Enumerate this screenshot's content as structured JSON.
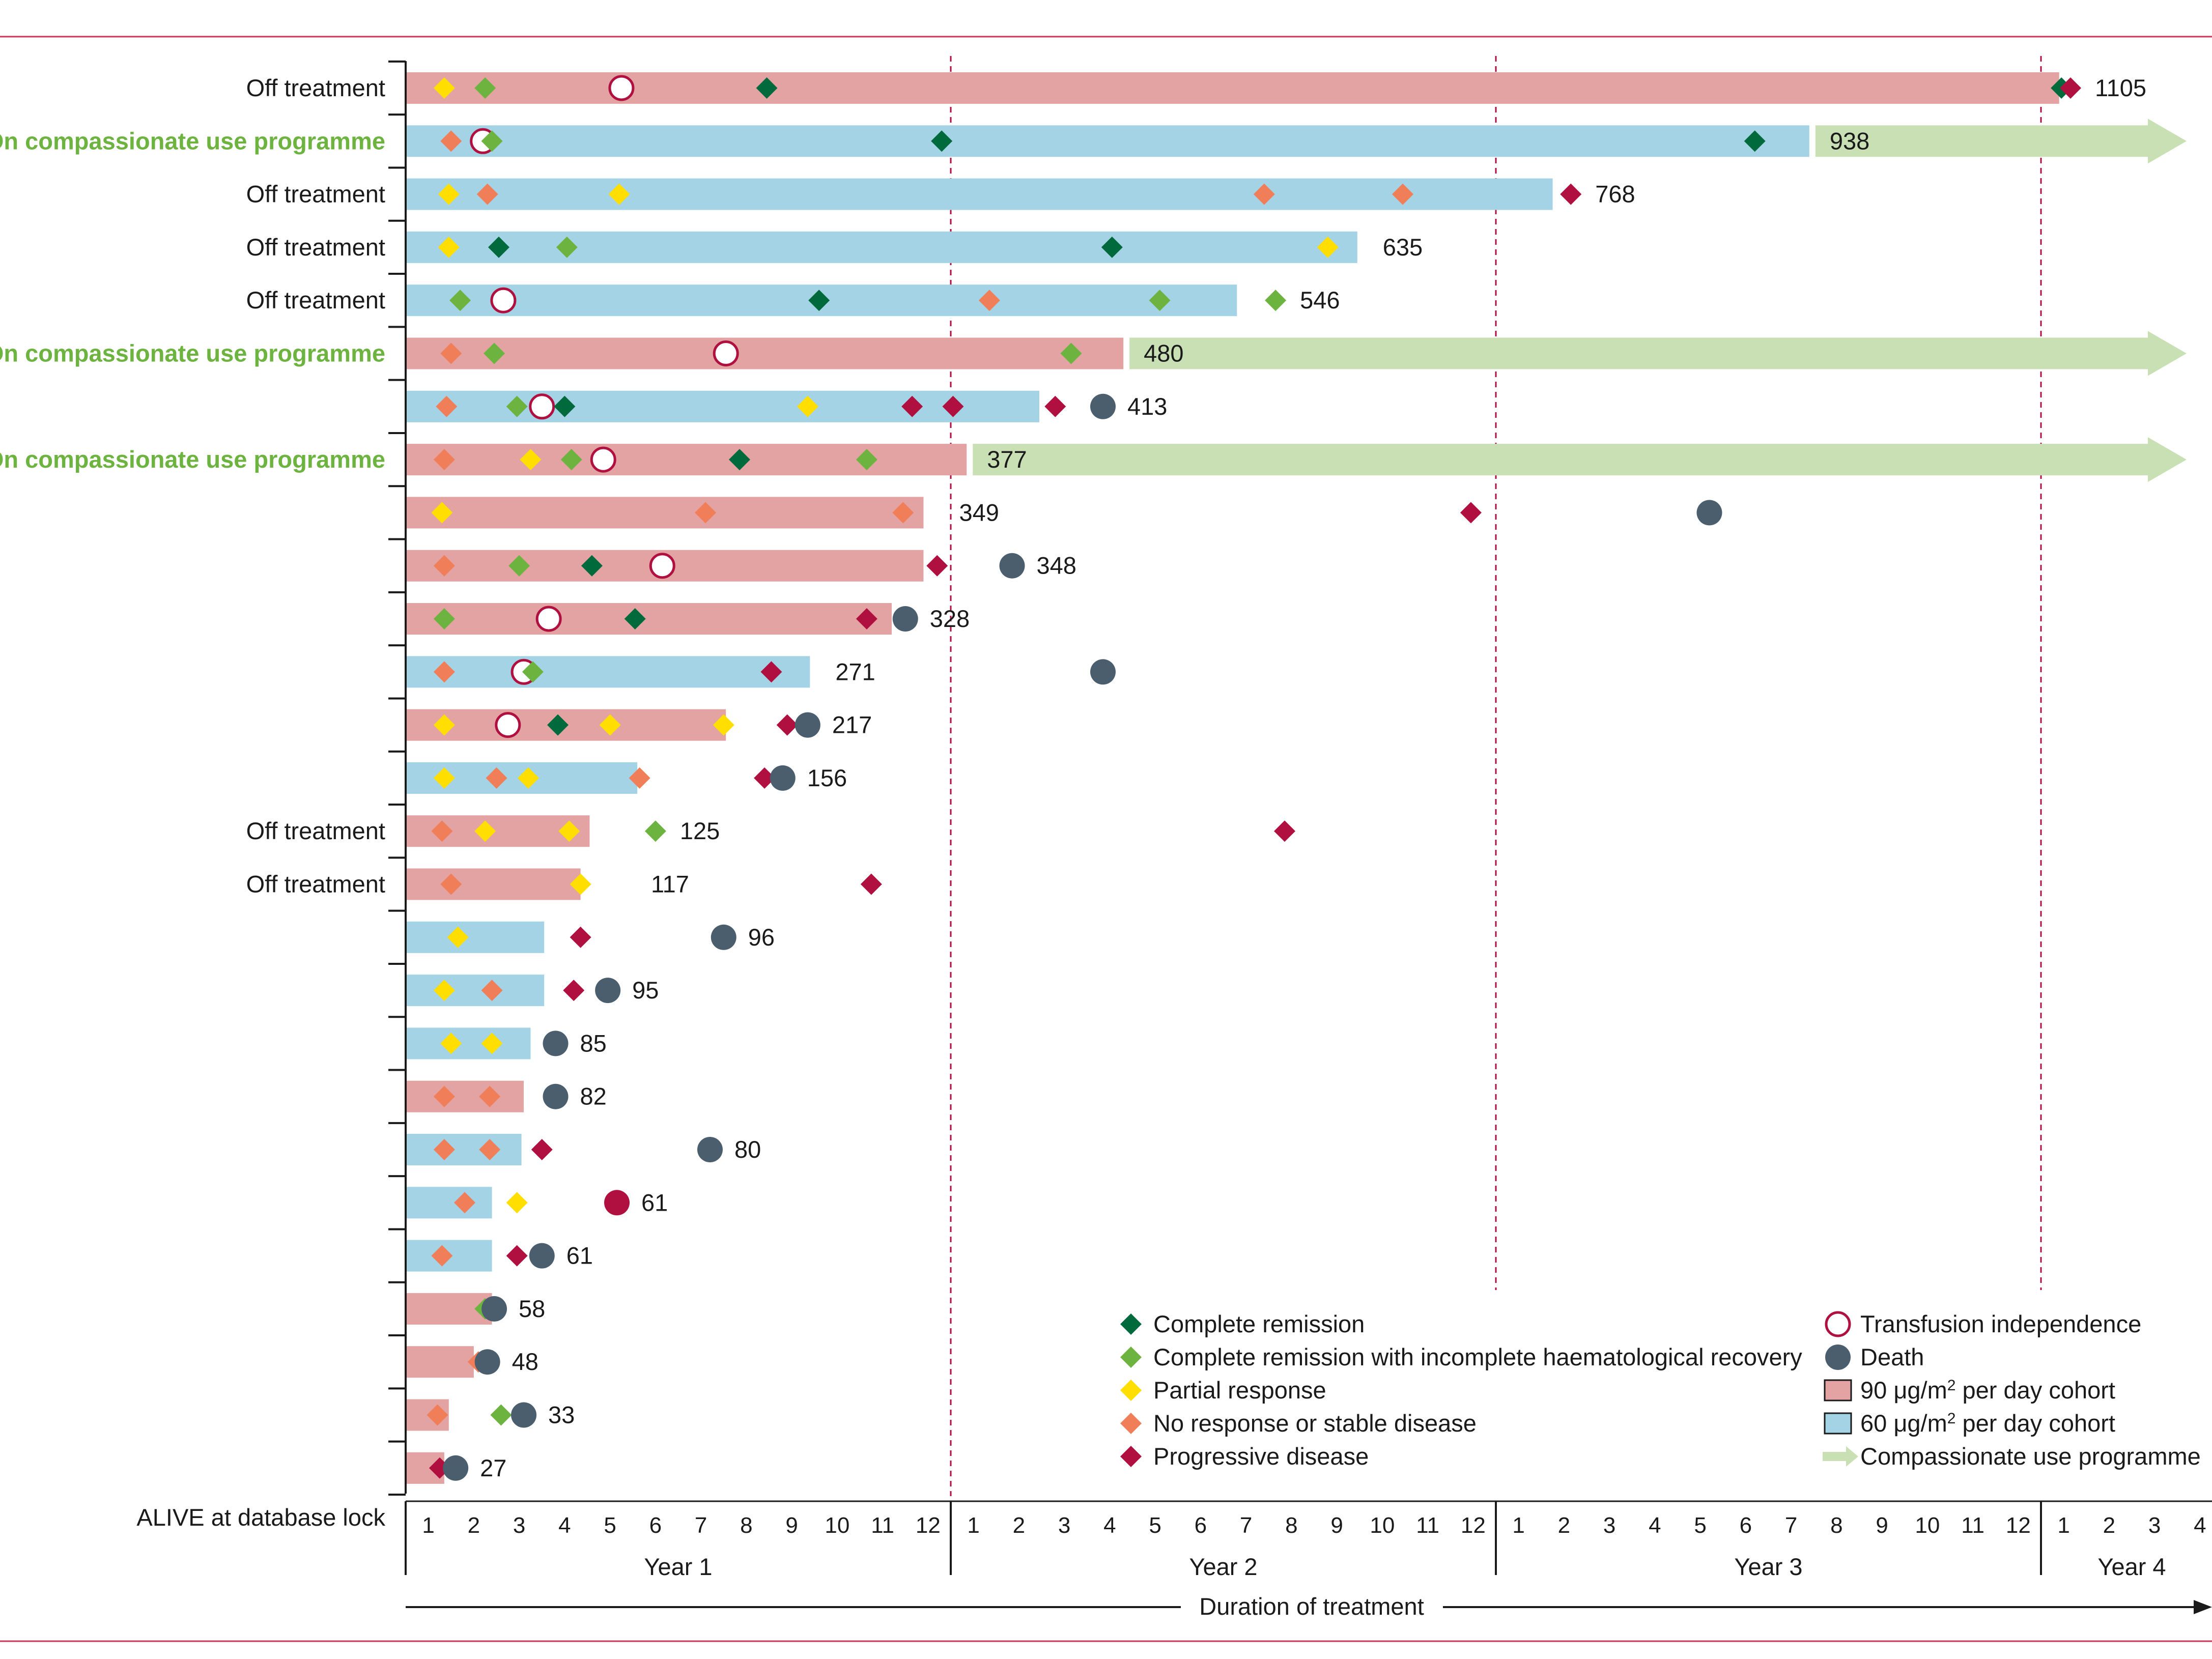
{
  "chart_data": {
    "type": "swimmer",
    "xlabel": "Duration of treatment",
    "x_unit": "months",
    "xlim": [
      0,
      40
    ],
    "axis_row_label": "ALIVE at database lock",
    "month_ticks": [
      "1",
      "2",
      "3",
      "4",
      "5",
      "6",
      "7",
      "8",
      "9",
      "10",
      "11",
      "12",
      "1",
      "2",
      "3",
      "4",
      "5",
      "6",
      "7",
      "8",
      "9",
      "10",
      "11",
      "12",
      "1",
      "2",
      "3",
      "4",
      "5",
      "6",
      "7",
      "8",
      "9",
      "10",
      "11",
      "12",
      "1",
      "2",
      "3",
      "4"
    ],
    "years": [
      {
        "label": "Year 1",
        "start": 0,
        "end": 12
      },
      {
        "label": "Year 2",
        "start": 12,
        "end": 24
      },
      {
        "label": "Year 3",
        "start": 24,
        "end": 36
      },
      {
        "label": "Year 4",
        "start": 36,
        "end": 40
      }
    ],
    "year_boundaries": [
      12,
      24,
      36
    ],
    "cohort_colors": {
      "90": "#e2a3a2",
      "60": "#a3d3e5",
      "cup": "#c8e0b4"
    },
    "marker_colors": {
      "CR": "#006a3d",
      "CRi": "#6db33f",
      "PR": "#ffde00",
      "NR": "#f07f59",
      "PD": "#b0103f",
      "TI": "#b0103f",
      "D": "#4b5e6e"
    },
    "legend": {
      "markers": [
        {
          "key": "CR",
          "label": "Complete remission"
        },
        {
          "key": "CRi",
          "label": "Complete remission with incomplete haematological recovery"
        },
        {
          "key": "PR",
          "label": "Partial response"
        },
        {
          "key": "NR",
          "label": "No response or stable disease"
        },
        {
          "key": "PD",
          "label": "Progressive disease"
        }
      ],
      "other": [
        {
          "key": "TI",
          "label": "Transfusion independence"
        },
        {
          "key": "D",
          "label": "Death"
        },
        {
          "key": "c90",
          "label": "90 μg/m² per day cohort",
          "base": "90 μg/m",
          "sup": "2",
          "rest": " per day cohort"
        },
        {
          "key": "c60",
          "label": "60 μg/m² per day cohort",
          "base": "60 μg/m",
          "sup": "2",
          "rest": " per day cohort"
        },
        {
          "key": "cup",
          "label": "Compassionate use programme"
        }
      ]
    },
    "patients": [
      {
        "status": "Off treatment",
        "cohort": "90",
        "end": 36.4,
        "days": "1105",
        "cup": false,
        "events": [
          {
            "t": 0.85,
            "type": "PR"
          },
          {
            "t": 1.75,
            "type": "CRi"
          },
          {
            "t": 4.75,
            "type": "TI"
          },
          {
            "t": 7.95,
            "type": "CR"
          },
          {
            "t": 36.45,
            "type": "CR"
          },
          {
            "t": 36.65,
            "type": "PD"
          }
        ]
      },
      {
        "status": "On compassionate use programme",
        "cohort": "60",
        "end": 30.9,
        "days": "938",
        "cup": true,
        "events": [
          {
            "t": 1.0,
            "type": "NR"
          },
          {
            "t": 1.9,
            "type": "CRi"
          },
          {
            "t": 1.7,
            "type": "TI"
          },
          {
            "t": 11.8,
            "type": "CR"
          },
          {
            "t": 29.7,
            "type": "CR"
          }
        ]
      },
      {
        "status": "Off treatment",
        "cohort": "60",
        "end": 25.25,
        "days": "768",
        "cup": false,
        "events": [
          {
            "t": 0.95,
            "type": "PR"
          },
          {
            "t": 1.8,
            "type": "NR"
          },
          {
            "t": 4.7,
            "type": "PR"
          },
          {
            "t": 18.9,
            "type": "NR"
          },
          {
            "t": 21.95,
            "type": "NR"
          },
          {
            "t": 25.65,
            "type": "PD"
          }
        ]
      },
      {
        "status": "Off treatment",
        "cohort": "60",
        "end": 20.95,
        "days": "635",
        "cup": false,
        "events": [
          {
            "t": 0.95,
            "type": "PR"
          },
          {
            "t": 2.05,
            "type": "CR"
          },
          {
            "t": 3.55,
            "type": "CRi"
          },
          {
            "t": 15.55,
            "type": "CR"
          },
          {
            "t": 20.3,
            "type": "PR"
          }
        ]
      },
      {
        "status": "Off treatment",
        "cohort": "60",
        "end": 18.3,
        "days": "546",
        "cup": false,
        "events": [
          {
            "t": 1.2,
            "type": "CRi"
          },
          {
            "t": 2.15,
            "type": "TI"
          },
          {
            "t": 9.1,
            "type": "CR"
          },
          {
            "t": 12.85,
            "type": "NR"
          },
          {
            "t": 16.6,
            "type": "CRi"
          },
          {
            "t": 19.15,
            "type": "CRi"
          }
        ]
      },
      {
        "status": "On compassionate use programme",
        "cohort": "90",
        "end": 15.8,
        "days": "480",
        "cup": true,
        "events": [
          {
            "t": 1.0,
            "type": "NR"
          },
          {
            "t": 1.95,
            "type": "CRi"
          },
          {
            "t": 7.05,
            "type": "TI"
          },
          {
            "t": 14.65,
            "type": "CRi"
          }
        ]
      },
      {
        "status": "",
        "cohort": "60",
        "end": 13.95,
        "days": "413",
        "cup": false,
        "events": [
          {
            "t": 0.9,
            "type": "NR"
          },
          {
            "t": 2.45,
            "type": "CRi"
          },
          {
            "t": 3.5,
            "type": "CR"
          },
          {
            "t": 3.0,
            "type": "TI"
          },
          {
            "t": 8.85,
            "type": "PR"
          },
          {
            "t": 11.15,
            "type": "PD"
          },
          {
            "t": 12.05,
            "type": "PD"
          },
          {
            "t": 14.3,
            "type": "PD"
          },
          {
            "t": 15.35,
            "type": "D"
          }
        ]
      },
      {
        "status": "On compassionate use programme",
        "cohort": "90",
        "end": 12.35,
        "days": "377",
        "cup": true,
        "events": [
          {
            "t": 0.85,
            "type": "NR"
          },
          {
            "t": 2.75,
            "type": "PR"
          },
          {
            "t": 3.65,
            "type": "CRi"
          },
          {
            "t": 4.35,
            "type": "TI"
          },
          {
            "t": 7.35,
            "type": "CR"
          },
          {
            "t": 10.15,
            "type": "CRi"
          }
        ]
      },
      {
        "status": "",
        "cohort": "90",
        "end": 11.4,
        "days": "349",
        "cup": false,
        "events": [
          {
            "t": 0.8,
            "type": "PR"
          },
          {
            "t": 6.6,
            "type": "NR"
          },
          {
            "t": 10.95,
            "type": "NR"
          },
          {
            "t": 23.45,
            "type": "PD"
          },
          {
            "t": 28.7,
            "type": "D"
          }
        ]
      },
      {
        "status": "",
        "cohort": "90",
        "end": 11.4,
        "days": "348",
        "cup": false,
        "events": [
          {
            "t": 0.85,
            "type": "NR"
          },
          {
            "t": 2.5,
            "type": "CRi"
          },
          {
            "t": 4.1,
            "type": "CR"
          },
          {
            "t": 5.65,
            "type": "TI"
          },
          {
            "t": 11.7,
            "type": "PD"
          },
          {
            "t": 13.35,
            "type": "D"
          }
        ]
      },
      {
        "status": "",
        "cohort": "90",
        "end": 10.7,
        "days": "328",
        "cup": false,
        "events": [
          {
            "t": 0.85,
            "type": "CRi"
          },
          {
            "t": 3.15,
            "type": "TI"
          },
          {
            "t": 5.05,
            "type": "CR"
          },
          {
            "t": 10.15,
            "type": "PD"
          },
          {
            "t": 11.0,
            "type": "D"
          }
        ]
      },
      {
        "status": "",
        "cohort": "60",
        "end": 8.9,
        "days": "271",
        "cup": false,
        "events": [
          {
            "t": 0.85,
            "type": "NR"
          },
          {
            "t": 2.8,
            "type": "CRi"
          },
          {
            "t": 2.6,
            "type": "TI"
          },
          {
            "t": 8.05,
            "type": "PD"
          },
          {
            "t": 15.35,
            "type": "D"
          }
        ]
      },
      {
        "status": "",
        "cohort": "90",
        "end": 7.05,
        "days": "217",
        "cup": false,
        "events": [
          {
            "t": 0.85,
            "type": "PR"
          },
          {
            "t": 2.25,
            "type": "TI"
          },
          {
            "t": 3.35,
            "type": "CR"
          },
          {
            "t": 4.5,
            "type": "PR"
          },
          {
            "t": 7.0,
            "type": "PR"
          },
          {
            "t": 8.4,
            "type": "PD"
          },
          {
            "t": 8.85,
            "type": "D"
          }
        ]
      },
      {
        "status": "",
        "cohort": "60",
        "end": 5.1,
        "days": "156",
        "cup": false,
        "events": [
          {
            "t": 0.85,
            "type": "PR"
          },
          {
            "t": 2.0,
            "type": "NR"
          },
          {
            "t": 2.7,
            "type": "PR"
          },
          {
            "t": 5.15,
            "type": "NR"
          },
          {
            "t": 7.9,
            "type": "PD"
          },
          {
            "t": 8.3,
            "type": "D"
          }
        ]
      },
      {
        "status": "Off treatment",
        "cohort": "90",
        "end": 4.05,
        "days": "125",
        "cup": false,
        "events": [
          {
            "t": 0.8,
            "type": "NR"
          },
          {
            "t": 1.75,
            "type": "PR"
          },
          {
            "t": 3.6,
            "type": "PR"
          },
          {
            "t": 5.5,
            "type": "CRi"
          },
          {
            "t": 19.35,
            "type": "PD"
          }
        ]
      },
      {
        "status": "Off treatment",
        "cohort": "90",
        "end": 3.85,
        "days": "117",
        "cup": false,
        "events": [
          {
            "t": 1.0,
            "type": "NR"
          },
          {
            "t": 3.85,
            "type": "PR"
          },
          {
            "t": 10.25,
            "type": "PD"
          }
        ]
      },
      {
        "status": "",
        "cohort": "60",
        "end": 3.05,
        "days": "96",
        "cup": false,
        "events": [
          {
            "t": 1.15,
            "type": "PR"
          },
          {
            "t": 3.85,
            "type": "PD"
          },
          {
            "t": 7.0,
            "type": "D"
          }
        ]
      },
      {
        "status": "",
        "cohort": "60",
        "end": 3.05,
        "days": "95",
        "cup": false,
        "events": [
          {
            "t": 0.85,
            "type": "PR"
          },
          {
            "t": 1.9,
            "type": "NR"
          },
          {
            "t": 3.7,
            "type": "PD"
          },
          {
            "t": 4.45,
            "type": "D"
          }
        ]
      },
      {
        "status": "",
        "cohort": "60",
        "end": 2.75,
        "days": "85",
        "cup": false,
        "events": [
          {
            "t": 1.0,
            "type": "PR"
          },
          {
            "t": 1.9,
            "type": "PR"
          },
          {
            "t": 3.3,
            "type": "D"
          }
        ]
      },
      {
        "status": "",
        "cohort": "90",
        "end": 2.6,
        "days": "82",
        "cup": false,
        "events": [
          {
            "t": 0.85,
            "type": "NR"
          },
          {
            "t": 1.85,
            "type": "NR"
          },
          {
            "t": 3.3,
            "type": "D"
          }
        ]
      },
      {
        "status": "",
        "cohort": "60",
        "end": 2.55,
        "days": "80",
        "cup": false,
        "events": [
          {
            "t": 0.85,
            "type": "NR"
          },
          {
            "t": 1.85,
            "type": "NR"
          },
          {
            "t": 3.0,
            "type": "PD"
          },
          {
            "t": 6.7,
            "type": "D"
          }
        ]
      },
      {
        "status": "",
        "cohort": "60",
        "end": 1.9,
        "days": "61",
        "cup": false,
        "events": [
          {
            "t": 1.3,
            "type": "NR"
          },
          {
            "t": 2.45,
            "type": "PR"
          },
          {
            "t": 4.65,
            "type": "DR"
          }
        ]
      },
      {
        "status": "",
        "cohort": "60",
        "end": 1.9,
        "days": "61",
        "cup": false,
        "events": [
          {
            "t": 0.8,
            "type": "NR"
          },
          {
            "t": 2.45,
            "type": "PD"
          },
          {
            "t": 3.0,
            "type": "D"
          }
        ]
      },
      {
        "status": "",
        "cohort": "90",
        "end": 1.9,
        "days": "58",
        "cup": false,
        "events": [
          {
            "t": 1.75,
            "type": "CRi"
          },
          {
            "t": 1.95,
            "type": "D"
          }
        ]
      },
      {
        "status": "",
        "cohort": "90",
        "end": 1.5,
        "days": "48",
        "cup": false,
        "events": [
          {
            "t": 1.6,
            "type": "NR"
          },
          {
            "t": 1.8,
            "type": "D"
          }
        ]
      },
      {
        "status": "",
        "cohort": "90",
        "end": 0.95,
        "days": "33",
        "cup": false,
        "events": [
          {
            "t": 0.7,
            "type": "NR"
          },
          {
            "t": 2.1,
            "type": "CRi"
          },
          {
            "t": 2.6,
            "type": "D"
          }
        ]
      },
      {
        "status": "",
        "cohort": "90",
        "end": 0.85,
        "days": "27",
        "cup": false,
        "events": [
          {
            "t": 0.75,
            "type": "PD"
          },
          {
            "t": 1.1,
            "type": "D"
          }
        ]
      }
    ]
  }
}
